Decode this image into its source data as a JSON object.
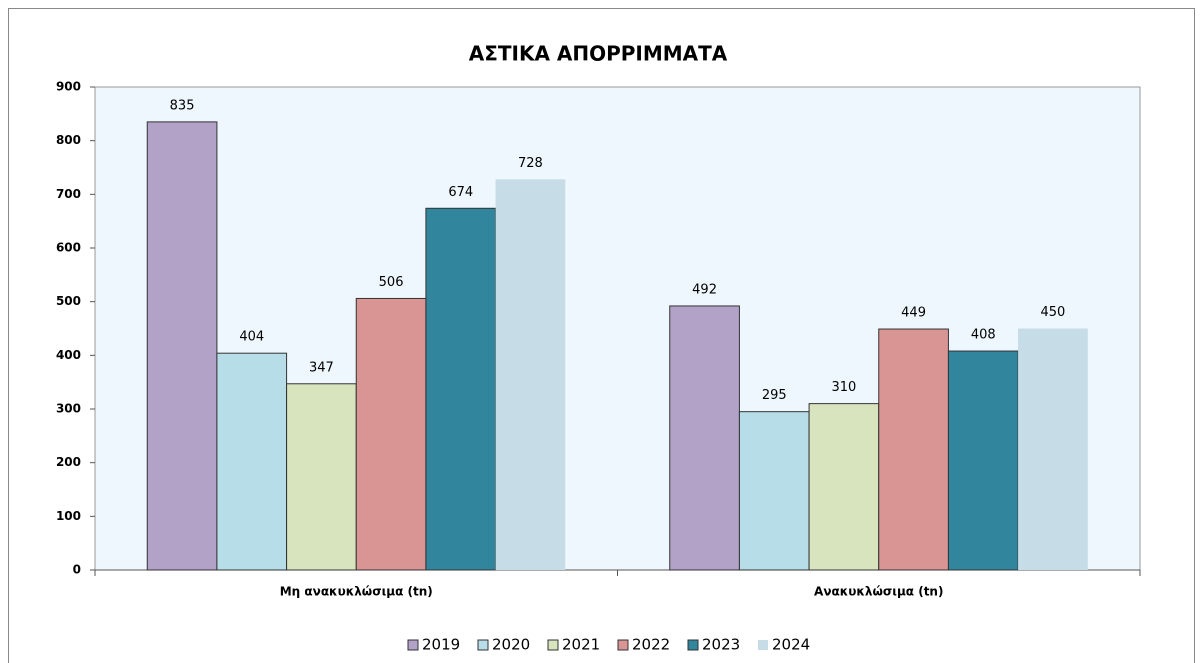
{
  "chart_data": {
    "type": "bar",
    "title": "ΑΣΤΙΚΑ ΑΠΟΡΡΙΜΜΑΤΑ",
    "categories": [
      "Μη ανακυκλώσιμα (tn)",
      "Ανακυκλώσιμα (tn)"
    ],
    "series": [
      {
        "name": "2019",
        "color": "#b3a2c7",
        "values": [
          835,
          492
        ]
      },
      {
        "name": "2020",
        "color": "#b7dde8",
        "values": [
          404,
          295
        ]
      },
      {
        "name": "2021",
        "color": "#d7e4bd",
        "values": [
          347,
          310
        ]
      },
      {
        "name": "2022",
        "color": "#d99594",
        "values": [
          506,
          449
        ]
      },
      {
        "name": "2023",
        "color": "#31859c",
        "values": [
          674,
          408
        ]
      },
      {
        "name": "2024",
        "color": "#c6dce6",
        "values": [
          728,
          450
        ]
      }
    ],
    "ylim": [
      0,
      900
    ],
    "yticks": [
      0,
      100,
      200,
      300,
      400,
      500,
      600,
      700,
      800,
      900
    ],
    "legend": "bottom"
  }
}
